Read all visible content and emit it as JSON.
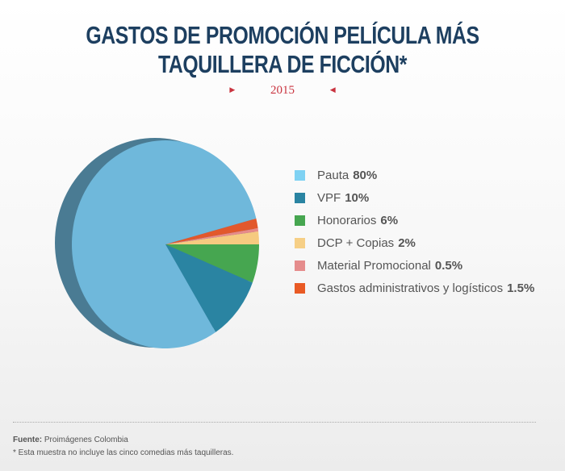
{
  "header": {
    "title_line1": "GASTOS DE PROMOCIÓN PELÍCULA MÁS",
    "title_line2": "TAQUILLERA DE FICCIÓN*",
    "year": "2015"
  },
  "chart_data": {
    "type": "pie",
    "title": "GASTOS DE PROMOCIÓN PELÍCULA MÁS TAQUILLERA DE FICCIÓN*",
    "subtitle": "2015",
    "legend_position": "right",
    "slices": [
      {
        "label": "Pauta",
        "value": 80,
        "value_label": "80%",
        "color": "#6fb8db",
        "swatch": "#7fd2f3"
      },
      {
        "label": "VPF",
        "value": 10,
        "value_label": "10%",
        "color": "#2a84a2",
        "swatch": "#2a84a2"
      },
      {
        "label": "Honorarios",
        "value": 6,
        "value_label": "6%",
        "color": "#46a650",
        "swatch": "#46a650"
      },
      {
        "label": "DCP + Copias",
        "value": 2,
        "value_label": "2%",
        "color": "#f6ca80",
        "swatch": "#f6cf86"
      },
      {
        "label": "Material Promocional",
        "value": 0.5,
        "value_label": "0.5%",
        "color": "#e78a8a",
        "swatch": "#e58c8c"
      },
      {
        "label": "Gastos administrativos y logísticos",
        "value": 1.5,
        "value_label": "1.5%",
        "color": "#e2582c",
        "swatch": "#e95a24"
      }
    ],
    "side_color": "#4a7b93"
  },
  "footer": {
    "source_label": "Fuente:",
    "source_text": "Proimágenes Colombia",
    "footnote": "* Esta muestra no incluye las cinco comedias más taquilleras."
  }
}
